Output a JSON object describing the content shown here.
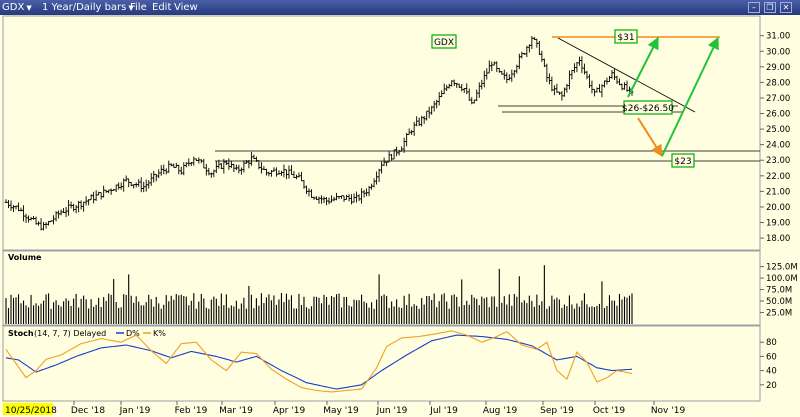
{
  "toolbar": {
    "symbol": "GDX",
    "timeframe": "1 Year/Daily bars",
    "menu": [
      "File",
      "Edit",
      "View"
    ]
  },
  "colors": {
    "background": "#fffee0",
    "price_bar": "#000000",
    "annotation_line": "#f08c1e",
    "arrow_up": "#22c33a",
    "label_border": "#00aa00",
    "stoch_d": "#1a3fc8",
    "stoch_k": "#f0a020",
    "date_highlight": "#ffff00"
  },
  "chart_data": [
    {
      "type": "ohlc",
      "title": "",
      "legend_label": "GDX",
      "y_ticks": [
        18,
        19,
        20,
        21,
        22,
        23,
        24,
        25,
        26,
        27,
        28,
        29,
        30,
        31
      ],
      "y_tick_labels": [
        "18.00",
        "19.00",
        "20.00",
        "21.00",
        "22.00",
        "23.00",
        "24.00",
        "25.00",
        "26.00",
        "27.00",
        "28.00",
        "29.00",
        "30.00",
        "31.00"
      ],
      "ylim": [
        17.3,
        32.2
      ],
      "grid": false,
      "series": [
        {
          "name": "",
          "x_range": [
            "2018-10-25",
            "2019-10-28"
          ],
          "close_keypoints": [
            [
              0,
              20.3
            ],
            [
              5,
              19.9
            ],
            [
              12,
              18.9
            ],
            [
              15,
              18.7
            ],
            [
              22,
              19.7
            ],
            [
              32,
              20.4
            ],
            [
              40,
              21.0
            ],
            [
              48,
              21.7
            ],
            [
              55,
              21.3
            ],
            [
              62,
              22.3
            ],
            [
              66,
              22.6
            ],
            [
              70,
              22.3
            ],
            [
              75,
              23.2
            ],
            [
              82,
              22.2
            ],
            [
              88,
              22.9
            ],
            [
              92,
              22.3
            ],
            [
              98,
              23.1
            ],
            [
              104,
              22.2
            ],
            [
              110,
              22.4
            ],
            [
              117,
              21.8
            ],
            [
              122,
              20.8
            ],
            [
              128,
              20.4
            ],
            [
              134,
              20.6
            ],
            [
              140,
              20.5
            ],
            [
              145,
              21.2
            ],
            [
              150,
              22.8
            ],
            [
              154,
              23.3
            ],
            [
              158,
              23.9
            ],
            [
              162,
              25.0
            ],
            [
              166,
              25.6
            ],
            [
              170,
              26.3
            ],
            [
              174,
              27.2
            ],
            [
              178,
              28.2
            ],
            [
              183,
              27.6
            ],
            [
              186,
              26.5
            ],
            [
              190,
              28.0
            ],
            [
              194,
              29.3
            ],
            [
              197,
              28.5
            ],
            [
              200,
              28.2
            ],
            [
              204,
              29.2
            ],
            [
              207,
              30.0
            ],
            [
              210,
              30.9
            ],
            [
              213,
              30.0
            ],
            [
              216,
              28.3
            ],
            [
              219,
              27.4
            ],
            [
              222,
              27.1
            ],
            [
              225,
              28.4
            ],
            [
              229,
              29.5
            ],
            [
              232,
              28.3
            ],
            [
              235,
              27.2
            ],
            [
              238,
              27.8
            ],
            [
              242,
              28.5
            ],
            [
              246,
              27.8
            ],
            [
              250,
              27.2
            ]
          ]
        }
      ],
      "annotations": {
        "level_labels": [
          "$31",
          "$26-$26.50",
          "$23"
        ],
        "resistance_line": 31.0,
        "support_lines": [
          23.7,
          23.0,
          26.1,
          26.5
        ]
      }
    },
    {
      "type": "bar",
      "title": "Volume",
      "y_ticks": [
        25,
        50,
        75,
        100,
        125
      ],
      "y_tick_labels": [
        "25.0M",
        "50.0M",
        "75.0M",
        "100.0M",
        "125.0M"
      ],
      "ylim": [
        0,
        135
      ],
      "series": [
        {
          "name": "",
          "pattern": "daily volume, mostly 30M-80M, peaks near 125M",
          "base": 45,
          "spread": 35,
          "peaks": [
            [
              43,
              98
            ],
            [
              49,
              108
            ],
            [
              97,
              83
            ],
            [
              149,
              108
            ],
            [
              182,
              97
            ],
            [
              197,
              120
            ],
            [
              205,
              104
            ],
            [
              215,
              128
            ],
            [
              238,
              93
            ]
          ]
        }
      ]
    },
    {
      "type": "line",
      "title": "Stoch",
      "params": "(14, 7, 7) Delayed",
      "legend": [
        "D%",
        "K%"
      ],
      "y_ticks": [
        20,
        40,
        60,
        80
      ],
      "y_tick_labels": [
        "20",
        "40",
        "60",
        "80"
      ],
      "ylim": [
        0,
        100
      ],
      "series": [
        {
          "name": "D%",
          "keypoints": [
            [
              0,
              58
            ],
            [
              5,
              55
            ],
            [
              12,
              38
            ],
            [
              20,
              48
            ],
            [
              28,
              60
            ],
            [
              38,
              72
            ],
            [
              48,
              76
            ],
            [
              58,
              68
            ],
            [
              66,
              58
            ],
            [
              74,
              67
            ],
            [
              84,
              60
            ],
            [
              92,
              52
            ],
            [
              100,
              60
            ],
            [
              110,
              40
            ],
            [
              120,
              23
            ],
            [
              132,
              14
            ],
            [
              142,
              20
            ],
            [
              150,
              40
            ],
            [
              160,
              62
            ],
            [
              170,
              82
            ],
            [
              180,
              90
            ],
            [
              190,
              88
            ],
            [
              200,
              84
            ],
            [
              210,
              75
            ],
            [
              220,
              55
            ],
            [
              228,
              60
            ],
            [
              236,
              44
            ],
            [
              242,
              40
            ],
            [
              250,
              42
            ]
          ]
        },
        {
          "name": "K%",
          "keypoints": [
            [
              0,
              70
            ],
            [
              4,
              50
            ],
            [
              8,
              30
            ],
            [
              12,
              40
            ],
            [
              16,
              56
            ],
            [
              22,
              62
            ],
            [
              30,
              78
            ],
            [
              38,
              85
            ],
            [
              46,
              80
            ],
            [
              52,
              90
            ],
            [
              58,
              68
            ],
            [
              64,
              50
            ],
            [
              70,
              78
            ],
            [
              76,
              80
            ],
            [
              82,
              55
            ],
            [
              88,
              40
            ],
            [
              94,
              66
            ],
            [
              100,
              64
            ],
            [
              106,
              42
            ],
            [
              112,
              28
            ],
            [
              118,
              16
            ],
            [
              124,
              12
            ],
            [
              130,
              10
            ],
            [
              136,
              12
            ],
            [
              142,
              14
            ],
            [
              148,
              44
            ],
            [
              152,
              74
            ],
            [
              158,
              86
            ],
            [
              165,
              88
            ],
            [
              172,
              92
            ],
            [
              178,
              96
            ],
            [
              184,
              90
            ],
            [
              190,
              80
            ],
            [
              196,
              88
            ],
            [
              200,
              95
            ],
            [
              206,
              76
            ],
            [
              212,
              70
            ],
            [
              216,
              80
            ],
            [
              220,
              40
            ],
            [
              224,
              28
            ],
            [
              228,
              66
            ],
            [
              232,
              52
            ],
            [
              236,
              24
            ],
            [
              240,
              30
            ],
            [
              244,
              40
            ],
            [
              250,
              36
            ]
          ]
        }
      ]
    }
  ],
  "x_axis": {
    "start_date": "10/25/2018",
    "labels": [
      "Dec '18",
      "Jan '19",
      "Feb '19",
      "Mar '19",
      "Apr '19",
      "May '19",
      "Jun '19",
      "Jul '19",
      "Aug '19",
      "Sep '19",
      "Oct '19",
      "Nov '19"
    ]
  }
}
